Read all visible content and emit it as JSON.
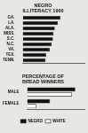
{
  "chart_data": [
    {
      "type": "bar",
      "title": "NEGRO ILLITERACY 1900",
      "orientation": "horizontal",
      "categories": [
        "GA.",
        "LA.",
        "ALA.",
        "MISS.",
        "S.C.",
        "N.C.",
        "VA.",
        "TEX.",
        "TENN."
      ],
      "values": [
        61,
        57,
        52,
        50,
        49,
        47,
        44,
        38,
        37
      ],
      "color": "#111111",
      "xlim": [
        0,
        100
      ],
      "grid": false,
      "tick_labels": "y"
    },
    {
      "type": "bar",
      "title": "PERCENTAGE OF BREAD WINNERS",
      "orientation": "horizontal",
      "categories": [
        "MALE",
        "FEMALE"
      ],
      "series": [
        {
          "name": "NEGRO",
          "color": "#111111",
          "values": [
            84,
            40
          ]
        },
        {
          "name": "WHITE",
          "color": "#ffffff",
          "values": [
            78,
            16
          ]
        }
      ],
      "xlim": [
        0,
        100
      ],
      "grid": false,
      "tick_labels": "y",
      "legend": "bottom"
    }
  ]
}
